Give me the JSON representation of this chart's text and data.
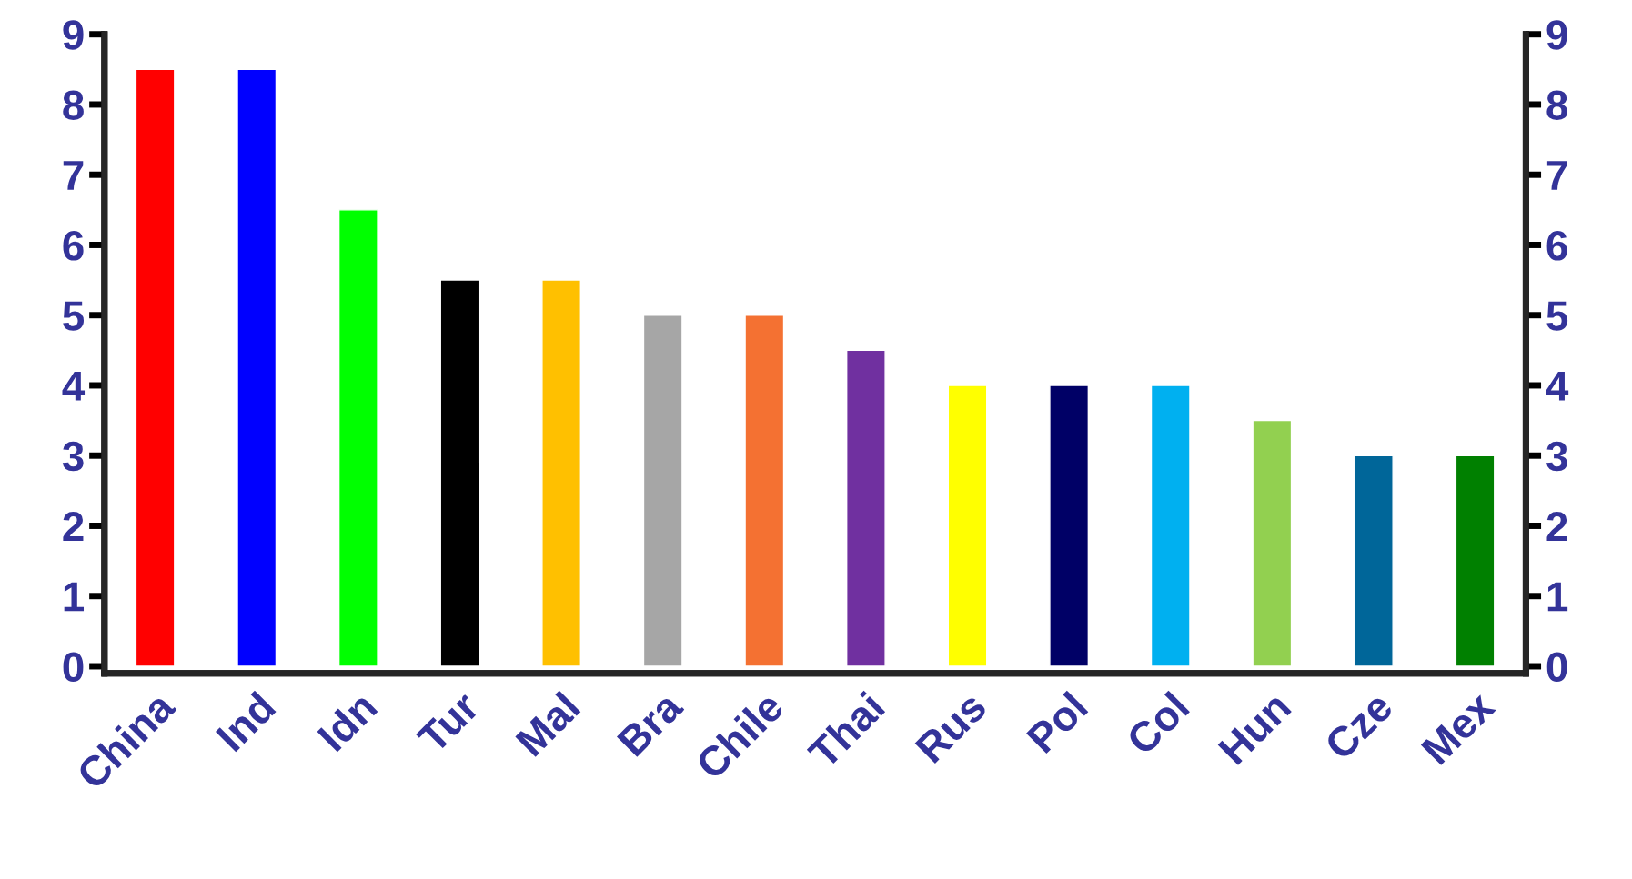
{
  "chart_data": {
    "type": "bar",
    "categories": [
      "China",
      "Ind",
      "Idn",
      "Tur",
      "Mal",
      "Bra",
      "Chile",
      "Thai",
      "Rus",
      "Pol",
      "Col",
      "Hun",
      "Cze",
      "Mex"
    ],
    "values": [
      8.5,
      8.5,
      6.5,
      5.5,
      5.5,
      5,
      5,
      4.5,
      4,
      4,
      4,
      3.5,
      3,
      3
    ],
    "colors": [
      "#ff0000",
      "#0000ff",
      "#00ff00",
      "#000000",
      "#ffc000",
      "#a6a6a6",
      "#f47132",
      "#7030a0",
      "#ffff00",
      "#000066",
      "#00b0f0",
      "#92d050",
      "#006699",
      "#008000"
    ],
    "ylim": [
      -0.1,
      9
    ],
    "yticks": [
      0,
      1,
      2,
      3,
      4,
      5,
      6,
      7,
      8,
      9
    ],
    "y2lim": [
      -0.1,
      9
    ],
    "y2ticks": [
      0,
      1,
      2,
      3,
      4,
      5,
      6,
      7,
      8,
      9
    ],
    "grid": false,
    "legend": false
  }
}
